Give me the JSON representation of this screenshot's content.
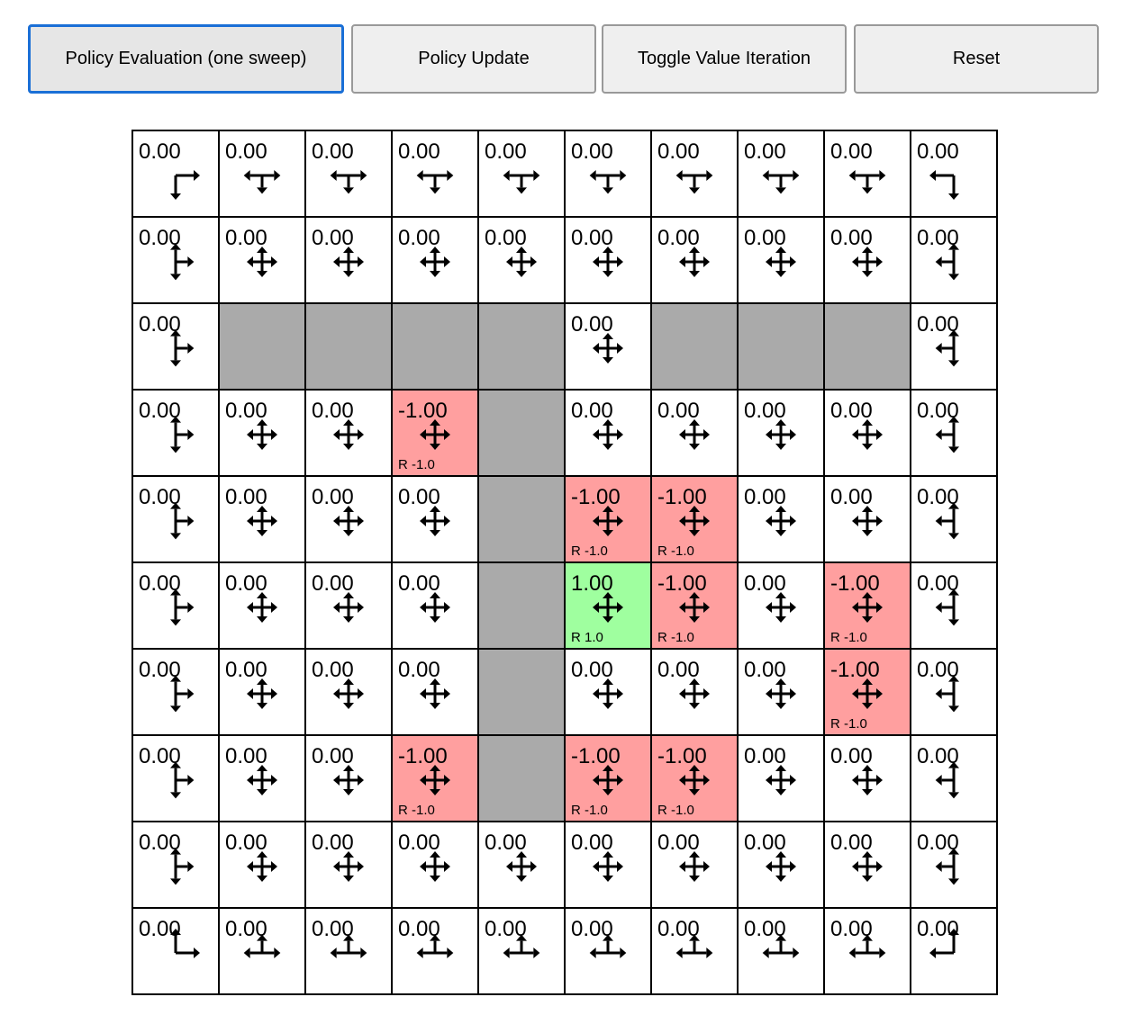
{
  "toolbar": {
    "buttons": [
      {
        "label": "Policy Evaluation (one sweep)",
        "focused": true
      },
      {
        "label": "Policy Update"
      },
      {
        "label": "Toggle Value Iteration"
      },
      {
        "label": "Reset"
      }
    ]
  },
  "colors": {
    "wall": "#aaaaaa",
    "negative": "#ff9f9f",
    "positive": "#9fff9f",
    "empty": "#ffffff",
    "grid_line": "#000000"
  },
  "grid": {
    "rows": 10,
    "cols": 10,
    "walls": [
      [
        2,
        1
      ],
      [
        2,
        2
      ],
      [
        2,
        3
      ],
      [
        2,
        4
      ],
      [
        2,
        6
      ],
      [
        2,
        7
      ],
      [
        2,
        8
      ],
      [
        3,
        4
      ],
      [
        4,
        4
      ],
      [
        5,
        4
      ],
      [
        6,
        4
      ],
      [
        7,
        4
      ]
    ],
    "rewards": [
      {
        "row": 3,
        "col": 3,
        "value": "-1.00",
        "reward": "R -1.0"
      },
      {
        "row": 4,
        "col": 5,
        "value": "-1.00",
        "reward": "R -1.0"
      },
      {
        "row": 4,
        "col": 6,
        "value": "-1.00",
        "reward": "R -1.0"
      },
      {
        "row": 5,
        "col": 5,
        "value": "1.00",
        "reward": "R 1.0"
      },
      {
        "row": 5,
        "col": 6,
        "value": "-1.00",
        "reward": "R -1.0"
      },
      {
        "row": 5,
        "col": 8,
        "value": "-1.00",
        "reward": "R -1.0"
      },
      {
        "row": 6,
        "col": 8,
        "value": "-1.00",
        "reward": "R -1.0"
      },
      {
        "row": 7,
        "col": 3,
        "value": "-1.00",
        "reward": "R -1.0"
      },
      {
        "row": 7,
        "col": 5,
        "value": "-1.00",
        "reward": "R -1.0"
      },
      {
        "row": 7,
        "col": 6,
        "value": "-1.00",
        "reward": "R -1.0"
      }
    ],
    "default_value": "0.00",
    "policy": "uniform over allowed actions"
  }
}
